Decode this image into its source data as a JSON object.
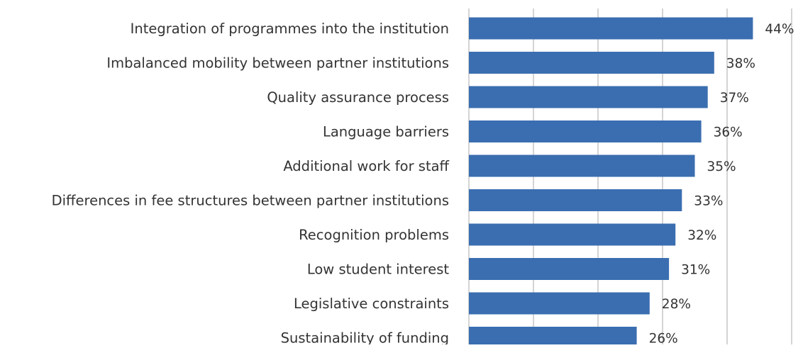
{
  "colors": {
    "bar": "#3a6eb0",
    "grid": "#a8a8a8",
    "text": "#333333"
  },
  "chart_data": {
    "type": "bar",
    "orientation": "horizontal",
    "categories": [
      "Integration of programmes into the institution",
      "Imbalanced mobility between partner institutions",
      "Quality assurance process",
      "Language barriers",
      "Additional work for staff",
      "Differences in fee structures between partner institutions",
      "Recognition problems",
      "Low student interest",
      "Legislative constraints",
      "Sustainability of funding"
    ],
    "values": [
      44,
      38,
      37,
      36,
      35,
      33,
      32,
      31,
      28,
      26
    ],
    "value_labels": [
      "44%",
      "38%",
      "37%",
      "36%",
      "35%",
      "33%",
      "32%",
      "31%",
      "28%",
      "26%"
    ],
    "xlim": [
      0,
      50
    ],
    "grid": true,
    "legend": "none"
  }
}
